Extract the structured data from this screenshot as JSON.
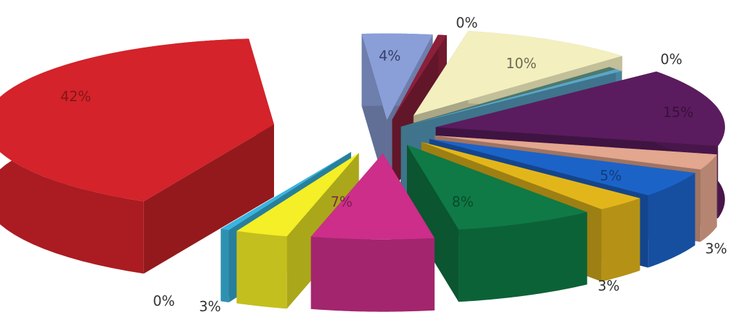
{
  "chart_data": {
    "type": "pie",
    "slices": [
      {
        "label": "4%",
        "value": 4,
        "color": "#8a9ed8"
      },
      {
        "label": "0%",
        "value": 0.5,
        "color": "#8c1f3a"
      },
      {
        "label": "10%",
        "value": 10,
        "color": "#f3efbf"
      },
      {
        "label": "0%",
        "value": 0.5,
        "color": "#4f7a6a"
      },
      {
        "label": "0%",
        "value": 0.5,
        "color": "#5aa6c8"
      },
      {
        "label": "15%",
        "value": 15,
        "color": "#5a1c5e"
      },
      {
        "label": "3%",
        "value": 3,
        "color": "#e3a68e"
      },
      {
        "label": "5%",
        "value": 5,
        "color": "#1c63c8"
      },
      {
        "label": "3%",
        "value": 3,
        "color": "#e2b61b"
      },
      {
        "label": "8%",
        "value": 8,
        "color": "#0f7a45"
      },
      {
        "label": "7%",
        "value": 7,
        "color": "#cc2e8a"
      },
      {
        "label": "3%",
        "value": 3,
        "color": "#f4ef26"
      },
      {
        "label": "0%",
        "value": 0.5,
        "color": "#39b5df"
      },
      {
        "label": "42%",
        "value": 42,
        "color": "#d4232a"
      }
    ]
  }
}
